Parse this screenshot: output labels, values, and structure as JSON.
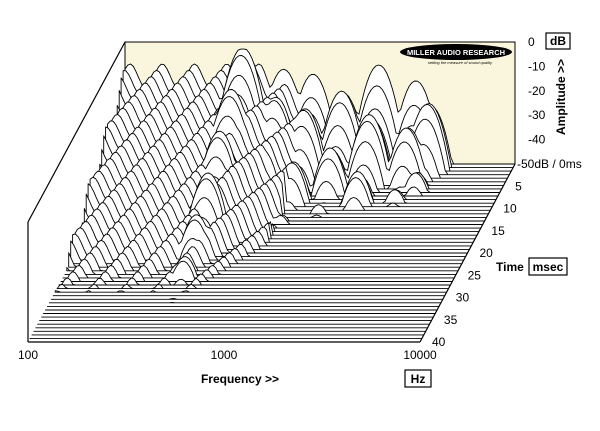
{
  "chart_data": {
    "type": "waterfall",
    "brand": {
      "name": "MILLER AUDIO RESEARCH",
      "tagline": "setting the measure of sound quality"
    },
    "colors": {
      "back_wall": "#f9f6dd",
      "trace_fill": "#ffffff",
      "trace_stroke": "#000000"
    },
    "x_axis": {
      "label": "Frequency >>",
      "unit": "Hz",
      "scale": "log",
      "range": [
        100,
        10000
      ],
      "ticks": [
        {
          "value": 100,
          "label": "100"
        },
        {
          "value": 1000,
          "label": "1000"
        },
        {
          "value": 10000,
          "label": "10000"
        }
      ]
    },
    "amplitude_axis": {
      "label": "Amplitude >>",
      "unit": "dB",
      "range": [
        -50,
        0
      ],
      "ticks": [
        {
          "value": 0,
          "label": "0"
        },
        {
          "value": -10,
          "label": "-10"
        },
        {
          "value": -20,
          "label": "-20"
        },
        {
          "value": -30,
          "label": "-30"
        },
        {
          "value": -40,
          "label": "-40"
        },
        {
          "value": -50,
          "label": "-50dB / 0ms"
        }
      ]
    },
    "time_axis": {
      "label": "Time",
      "unit": "msec",
      "range": [
        0,
        40
      ],
      "ticks": [
        {
          "value": 5,
          "label": "5"
        },
        {
          "value": 10,
          "label": "10"
        },
        {
          "value": 15,
          "label": "15"
        },
        {
          "value": 20,
          "label": "20"
        },
        {
          "value": 25,
          "label": "25"
        },
        {
          "value": 30,
          "label": "30"
        },
        {
          "value": 35,
          "label": "35"
        },
        {
          "value": 40,
          "label": "40"
        }
      ]
    },
    "slices": {
      "count": 50,
      "time_step_ms": 0.8
    },
    "resonances": [
      {
        "freq_hz": 420,
        "peak_db": -2,
        "decay_ms": 7
      },
      {
        "freq_hz": 650,
        "peak_db": -13,
        "decay_ms": 5
      },
      {
        "freq_hz": 920,
        "peak_db": -16,
        "decay_ms": 4.5
      },
      {
        "freq_hz": 1350,
        "peak_db": -18,
        "decay_ms": 4
      },
      {
        "freq_hz": 2000,
        "peak_db": -15,
        "decay_ms": 4
      },
      {
        "freq_hz": 3100,
        "peak_db": -20,
        "decay_ms": 3.5
      },
      {
        "freq_hz": 3700,
        "peak_db": -22,
        "decay_ms": 3
      }
    ]
  }
}
